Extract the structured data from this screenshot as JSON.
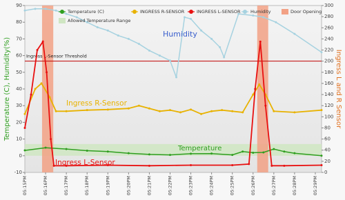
{
  "chart_data": {
    "type": "line",
    "y_label": "Temperature (C), Humidity(%)",
    "y2_label": "Ingress L and R Sensor",
    "ylim": [
      -10,
      90
    ],
    "yticks": [
      -10,
      0,
      10,
      20,
      30,
      40,
      50,
      60,
      70,
      80,
      90
    ],
    "y2lim": [
      0,
      300
    ],
    "y2ticks": [
      0,
      20,
      40,
      60,
      80,
      100,
      120,
      140,
      160,
      180,
      200,
      220,
      240,
      260,
      280,
      300
    ],
    "xlim": [
      0,
      14.3
    ],
    "xticks": [
      {
        "value": 0,
        "label": "05:15PM"
      },
      {
        "value": 1,
        "label": "05:16PM"
      },
      {
        "value": 2,
        "label": "05:17PM"
      },
      {
        "value": 3,
        "label": "05:18PM"
      },
      {
        "value": 4,
        "label": "05:19PM"
      },
      {
        "value": 5,
        "label": "05:20PM"
      },
      {
        "value": 6,
        "label": "05:21PM"
      },
      {
        "value": 7,
        "label": "05:22PM"
      },
      {
        "value": 8,
        "label": "05:23PM"
      },
      {
        "value": 9,
        "label": "05:24PM"
      },
      {
        "value": 10,
        "label": "05:25PM"
      },
      {
        "value": 11,
        "label": "05:26PM"
      },
      {
        "value": 12,
        "label": "05:27PM"
      },
      {
        "value": 13,
        "label": "05:28PM"
      },
      {
        "value": 14,
        "label": "05:29PM"
      }
    ],
    "series": [
      {
        "name": "Temperature (C)",
        "color": "#2e9e1e",
        "x": [
          0,
          1,
          2,
          3,
          4,
          5,
          6,
          7,
          8,
          9,
          10,
          10.5,
          11,
          11.5,
          12,
          12.5,
          13,
          14.3
        ],
        "values": [
          3.2,
          4.8,
          4,
          3,
          2.5,
          1.5,
          0.8,
          0.5,
          1.2,
          1.3,
          0.5,
          2.5,
          1.8,
          2,
          4,
          2.5,
          1.5,
          0
        ]
      },
      {
        "name": "INGRESS R-SENSOR",
        "color": "#e8b200",
        "axis": "y2",
        "x": [
          0,
          0.5,
          0.8,
          1.2,
          1.5,
          2,
          3,
          4,
          5,
          5.5,
          6,
          6.5,
          7,
          7.5,
          8,
          8.5,
          9,
          9.5,
          10,
          10.5,
          11,
          11.3,
          11.6,
          12,
          13,
          14.3
        ],
        "values": [
          105,
          150,
          160,
          135,
          110,
          110,
          112,
          113,
          115,
          120,
          115,
          110,
          112,
          108,
          113,
          105,
          110,
          112,
          110,
          108,
          140,
          158,
          140,
          110,
          108,
          112
        ]
      },
      {
        "name": "INGRESS L-SENSOR",
        "color": "#e81010",
        "axis": "y2",
        "x": [
          0,
          0.3,
          0.6,
          0.87,
          1.05,
          1.25,
          1.4,
          2,
          4,
          6,
          8,
          10,
          10.8,
          11.1,
          11.35,
          11.6,
          11.9,
          12.5,
          14.3
        ],
        "values": [
          80,
          140,
          220,
          235,
          180,
          60,
          12,
          12,
          13,
          12,
          13,
          13,
          15,
          150,
          235,
          120,
          12,
          12,
          13
        ]
      },
      {
        "name": "Humidity",
        "color": "#a6d2e0",
        "x": [
          0,
          0.5,
          1,
          1.5,
          2,
          2.5,
          3,
          3.5,
          4,
          4.5,
          5,
          5.5,
          6,
          6.5,
          7,
          7.3,
          7.7,
          8,
          8.5,
          9,
          9.4,
          9.6,
          10.3,
          11,
          11.5,
          12.1,
          13,
          14.3
        ],
        "values": [
          87,
          88,
          88,
          87,
          85,
          83,
          80,
          77,
          75,
          72,
          70,
          67,
          63,
          60,
          57,
          47,
          83,
          82,
          75,
          70,
          65,
          59,
          85,
          84,
          83,
          80,
          73,
          62
        ]
      }
    ],
    "door_opening": {
      "name": "Door Opening",
      "color": "#f2a185",
      "ranges": [
        [
          0.83,
          1.37
        ],
        [
          11.2,
          11.73
        ]
      ]
    },
    "allowed_range": {
      "name": "Allowed Temperature Range",
      "color": "#cfe6c2",
      "values": [
        0,
        7
      ]
    },
    "threshold": {
      "label": "Ingress L-Sensor Threshold",
      "value": 200,
      "axis": "y2",
      "color": "#c00000"
    },
    "annotations": [
      {
        "text": "Humidity",
        "color": "#3a5fcd"
      },
      {
        "text": "Ingress R-Sensor",
        "color": "#e8b200"
      },
      {
        "text": "Temperature",
        "color": "#2e9e1e"
      },
      {
        "text": "Ingress L-Sensor",
        "color": "#e81010"
      }
    ],
    "grid": false
  }
}
